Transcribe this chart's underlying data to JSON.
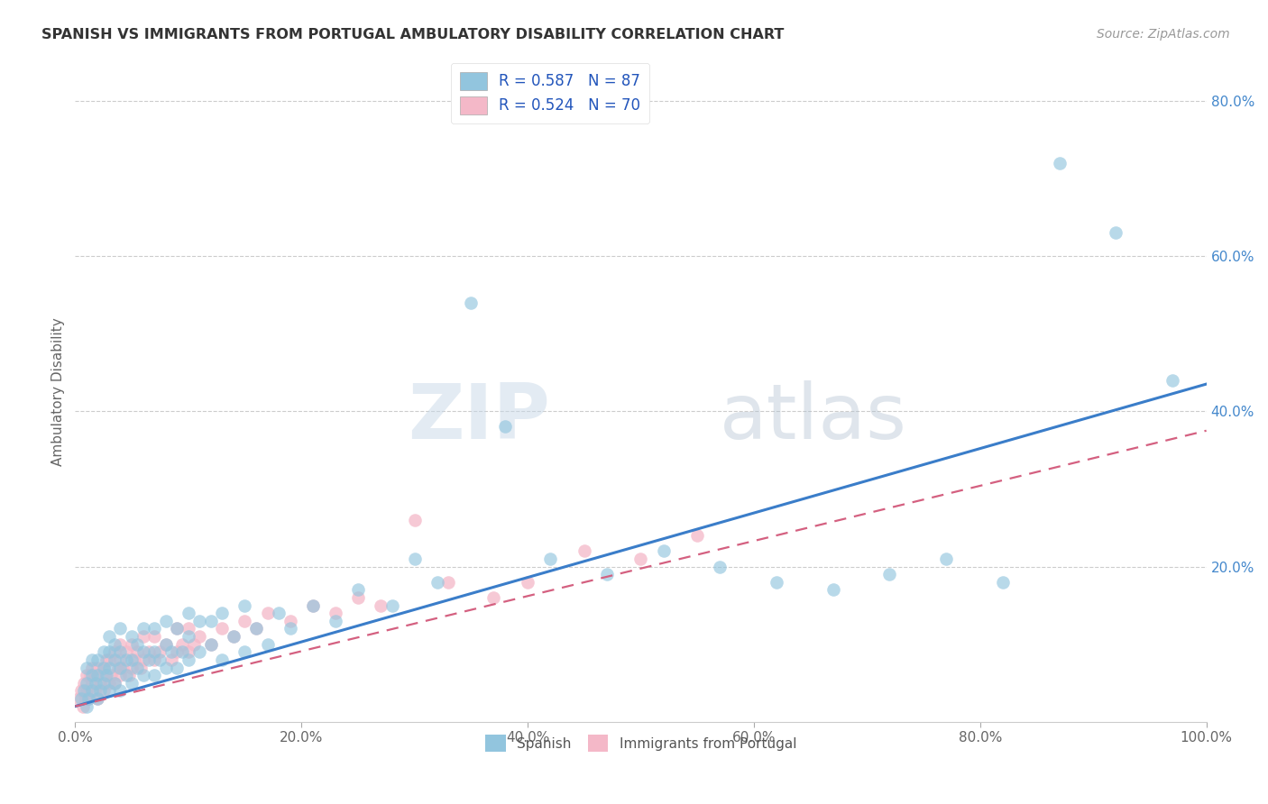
{
  "title": "SPANISH VS IMMIGRANTS FROM PORTUGAL AMBULATORY DISABILITY CORRELATION CHART",
  "source": "Source: ZipAtlas.com",
  "ylabel": "Ambulatory Disability",
  "xlim": [
    0,
    1.0
  ],
  "ylim": [
    0,
    0.85
  ],
  "xtick_labels": [
    "0.0%",
    "20.0%",
    "40.0%",
    "60.0%",
    "80.0%",
    "100.0%"
  ],
  "xtick_vals": [
    0.0,
    0.2,
    0.4,
    0.6,
    0.8,
    1.0
  ],
  "ytick_labels": [
    "20.0%",
    "40.0%",
    "60.0%",
    "80.0%"
  ],
  "ytick_vals": [
    0.2,
    0.4,
    0.6,
    0.8
  ],
  "legend1_label": "R = 0.587   N = 87",
  "legend2_label": "R = 0.524   N = 70",
  "blue_color": "#92c5de",
  "pink_color": "#f4b8c8",
  "blue_line_color": "#3a7dc9",
  "pink_line_color": "#d46080",
  "watermark_zip": "ZIP",
  "watermark_atlas": "atlas",
  "blue_line_x0": 0.0,
  "blue_line_y0": 0.02,
  "blue_line_x1": 1.0,
  "blue_line_y1": 0.435,
  "pink_line_x0": 0.0,
  "pink_line_y0": 0.02,
  "pink_line_x1": 1.0,
  "pink_line_y1": 0.375,
  "spanish_x": [
    0.005,
    0.008,
    0.01,
    0.01,
    0.01,
    0.012,
    0.015,
    0.015,
    0.015,
    0.018,
    0.02,
    0.02,
    0.02,
    0.022,
    0.025,
    0.025,
    0.025,
    0.028,
    0.03,
    0.03,
    0.03,
    0.03,
    0.035,
    0.035,
    0.035,
    0.04,
    0.04,
    0.04,
    0.04,
    0.045,
    0.045,
    0.05,
    0.05,
    0.05,
    0.055,
    0.055,
    0.06,
    0.06,
    0.06,
    0.065,
    0.07,
    0.07,
    0.07,
    0.075,
    0.08,
    0.08,
    0.08,
    0.085,
    0.09,
    0.09,
    0.095,
    0.1,
    0.1,
    0.1,
    0.11,
    0.11,
    0.12,
    0.12,
    0.13,
    0.13,
    0.14,
    0.15,
    0.15,
    0.16,
    0.17,
    0.18,
    0.19,
    0.21,
    0.23,
    0.25,
    0.28,
    0.3,
    0.32,
    0.35,
    0.38,
    0.42,
    0.47,
    0.52,
    0.57,
    0.62,
    0.67,
    0.72,
    0.77,
    0.82,
    0.87,
    0.92,
    0.97
  ],
  "spanish_y": [
    0.03,
    0.04,
    0.02,
    0.05,
    0.07,
    0.03,
    0.04,
    0.06,
    0.08,
    0.05,
    0.03,
    0.06,
    0.08,
    0.04,
    0.05,
    0.07,
    0.09,
    0.06,
    0.04,
    0.07,
    0.09,
    0.11,
    0.05,
    0.08,
    0.1,
    0.04,
    0.07,
    0.09,
    0.12,
    0.06,
    0.08,
    0.05,
    0.08,
    0.11,
    0.07,
    0.1,
    0.06,
    0.09,
    0.12,
    0.08,
    0.06,
    0.09,
    0.12,
    0.08,
    0.07,
    0.1,
    0.13,
    0.09,
    0.07,
    0.12,
    0.09,
    0.08,
    0.11,
    0.14,
    0.09,
    0.13,
    0.1,
    0.13,
    0.08,
    0.14,
    0.11,
    0.09,
    0.15,
    0.12,
    0.1,
    0.14,
    0.12,
    0.15,
    0.13,
    0.17,
    0.15,
    0.21,
    0.18,
    0.54,
    0.38,
    0.21,
    0.19,
    0.22,
    0.2,
    0.18,
    0.17,
    0.19,
    0.21,
    0.18,
    0.72,
    0.63,
    0.44
  ],
  "portugal_x": [
    0.003,
    0.005,
    0.007,
    0.008,
    0.009,
    0.01,
    0.01,
    0.012,
    0.013,
    0.015,
    0.015,
    0.017,
    0.018,
    0.02,
    0.02,
    0.022,
    0.025,
    0.025,
    0.027,
    0.028,
    0.03,
    0.03,
    0.032,
    0.035,
    0.035,
    0.038,
    0.04,
    0.04,
    0.04,
    0.042,
    0.045,
    0.048,
    0.05,
    0.05,
    0.052,
    0.055,
    0.058,
    0.06,
    0.06,
    0.065,
    0.07,
    0.07,
    0.075,
    0.08,
    0.085,
    0.09,
    0.09,
    0.095,
    0.1,
    0.1,
    0.105,
    0.11,
    0.12,
    0.13,
    0.14,
    0.15,
    0.16,
    0.17,
    0.19,
    0.21,
    0.23,
    0.25,
    0.27,
    0.3,
    0.33,
    0.37,
    0.4,
    0.45,
    0.5,
    0.55
  ],
  "portugal_y": [
    0.03,
    0.04,
    0.02,
    0.05,
    0.03,
    0.06,
    0.04,
    0.03,
    0.06,
    0.05,
    0.07,
    0.04,
    0.06,
    0.03,
    0.07,
    0.05,
    0.04,
    0.07,
    0.06,
    0.08,
    0.05,
    0.08,
    0.06,
    0.05,
    0.09,
    0.07,
    0.06,
    0.08,
    0.1,
    0.07,
    0.09,
    0.06,
    0.07,
    0.1,
    0.08,
    0.09,
    0.07,
    0.08,
    0.11,
    0.09,
    0.08,
    0.11,
    0.09,
    0.1,
    0.08,
    0.09,
    0.12,
    0.1,
    0.09,
    0.12,
    0.1,
    0.11,
    0.1,
    0.12,
    0.11,
    0.13,
    0.12,
    0.14,
    0.13,
    0.15,
    0.14,
    0.16,
    0.15,
    0.26,
    0.18,
    0.16,
    0.18,
    0.22,
    0.21,
    0.24
  ]
}
